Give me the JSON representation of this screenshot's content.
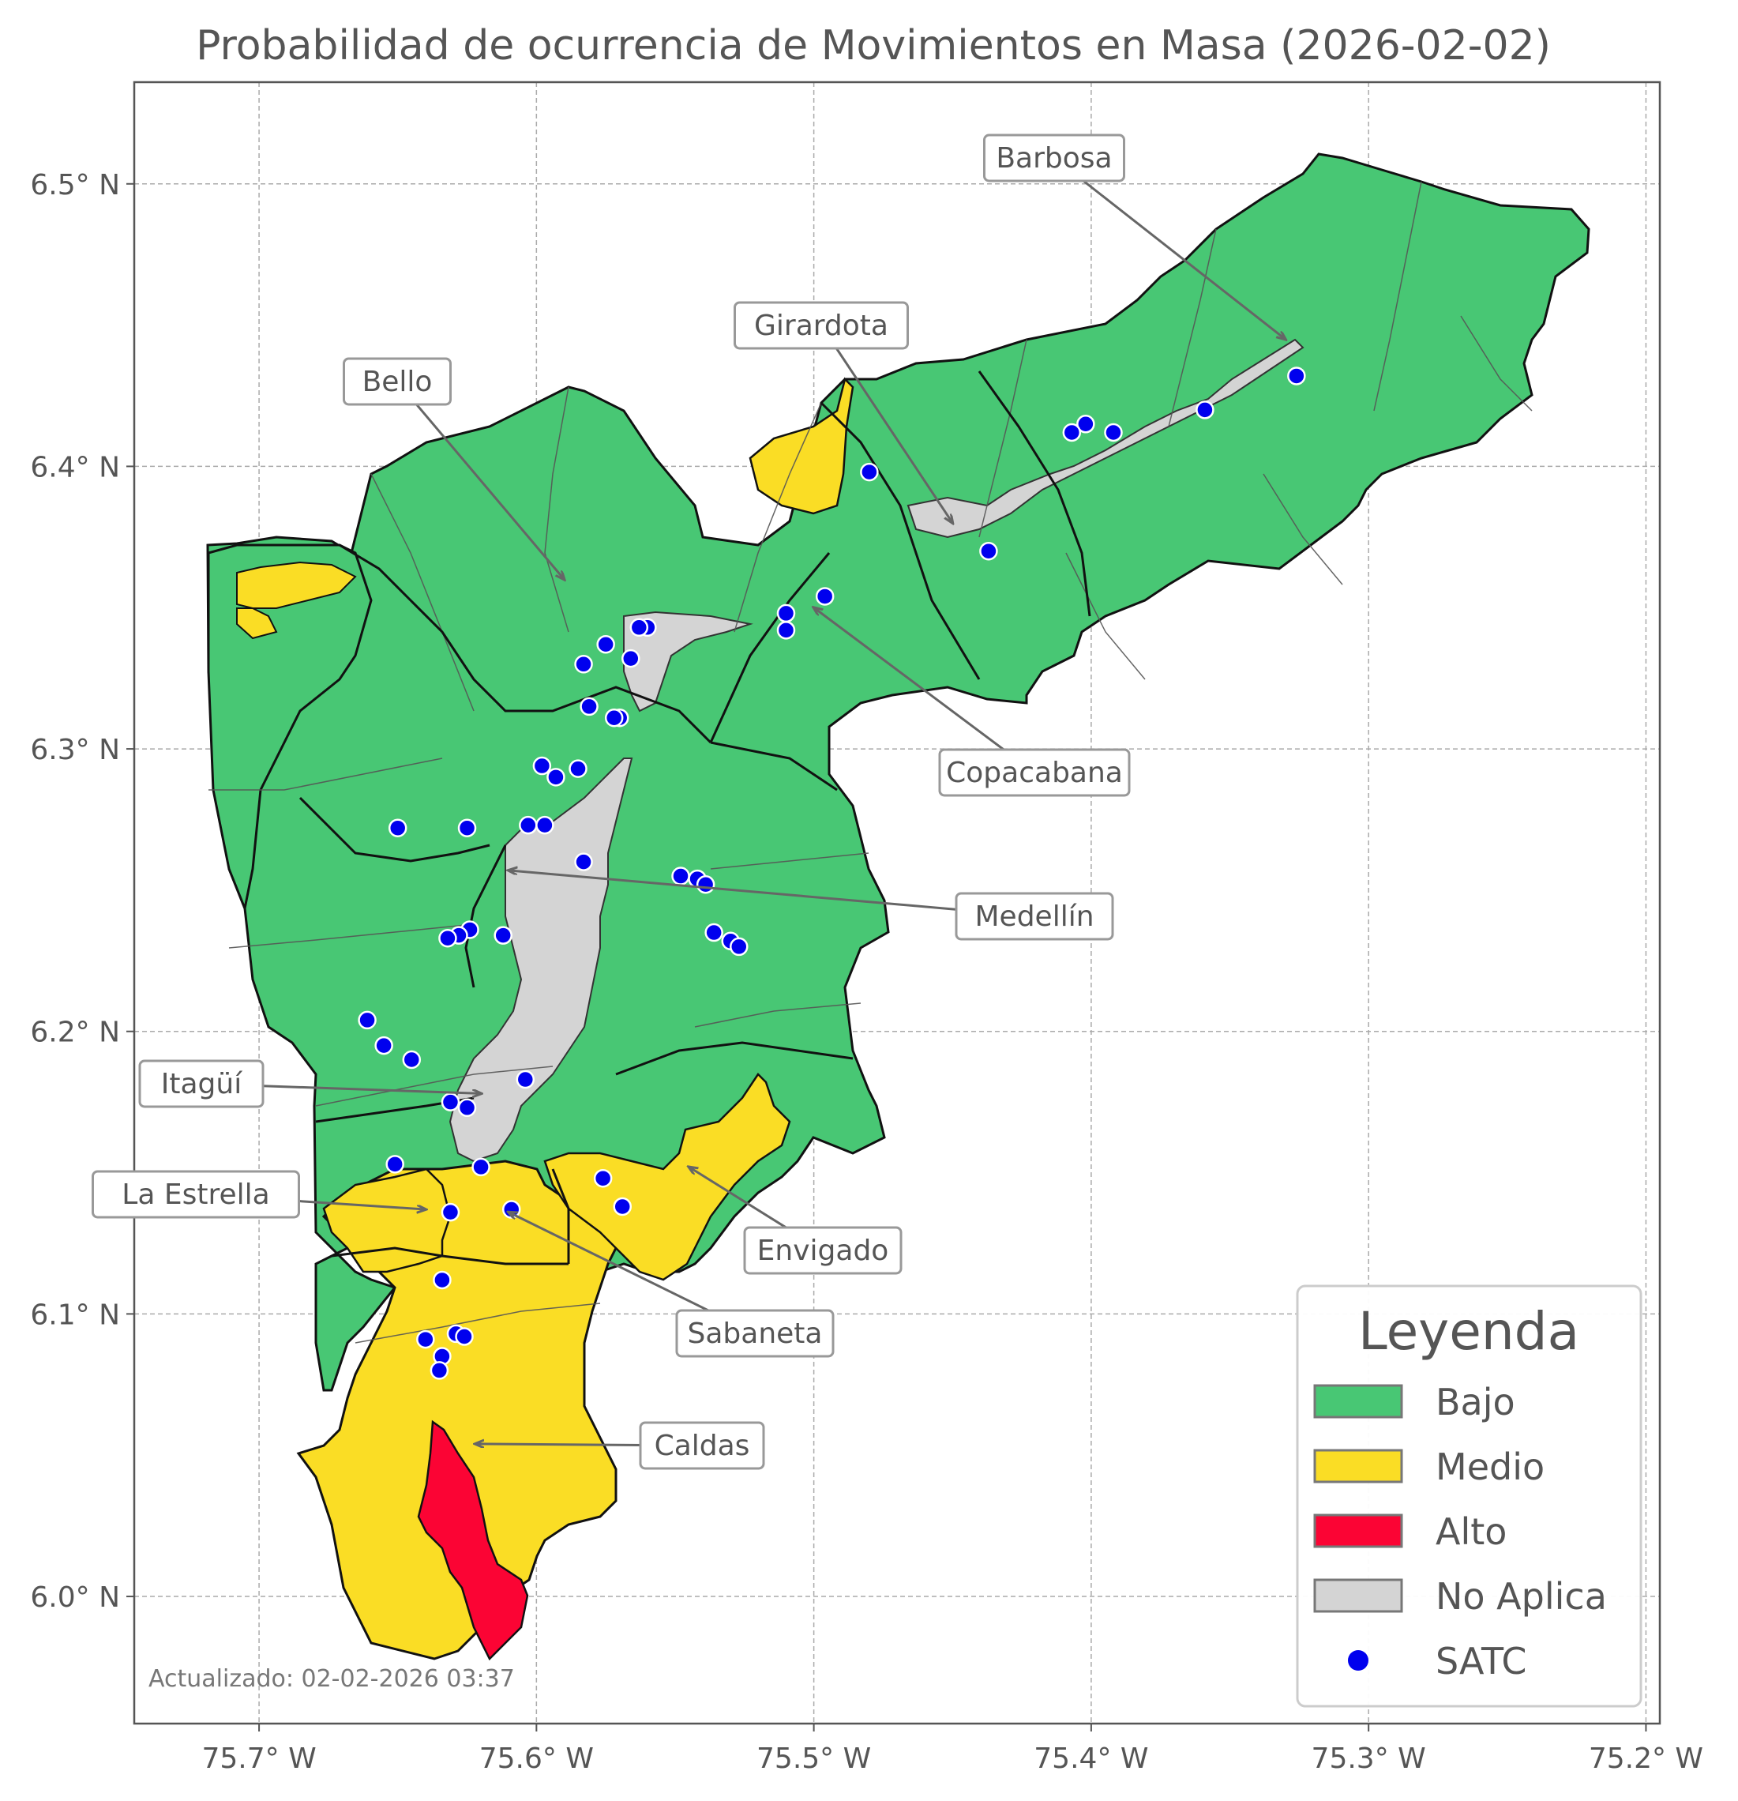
{
  "title": "Probabilidad de ocurrencia de Movimientos en Masa (2026-02-02)",
  "footer": "Actualizado: 02-02-2026 03:37",
  "axes": {
    "x_ticks": [
      {
        "value": -75.7,
        "label": "75.7° W"
      },
      {
        "value": -75.6,
        "label": "75.6° W"
      },
      {
        "value": -75.5,
        "label": "75.5° W"
      },
      {
        "value": -75.4,
        "label": "75.4° W"
      },
      {
        "value": -75.3,
        "label": "75.3° W"
      },
      {
        "value": -75.2,
        "label": "75.2° W"
      }
    ],
    "y_ticks": [
      {
        "value": 6.0,
        "label": "6.0° N"
      },
      {
        "value": 6.1,
        "label": "6.1° N"
      },
      {
        "value": 6.2,
        "label": "6.2° N"
      },
      {
        "value": 6.3,
        "label": "6.3° N"
      },
      {
        "value": 6.4,
        "label": "6.4° N"
      },
      {
        "value": 6.5,
        "label": "6.5° N"
      }
    ],
    "grid": true
  },
  "colors": {
    "bajo": "#48c774",
    "medio": "#fadd25",
    "alto": "#fb0434",
    "no_aplica": "#d4d4d4",
    "satc": "#0000ee",
    "border": "#111111",
    "inner": "#555555",
    "arrow": "#666666"
  },
  "legend": {
    "title": "Leyenda",
    "position": "bottom-right",
    "items": [
      {
        "label": "Bajo",
        "color": "#48c774",
        "kind": "patch"
      },
      {
        "label": "Medio",
        "color": "#fadd25",
        "kind": "patch"
      },
      {
        "label": "Alto",
        "color": "#fb0434",
        "kind": "patch"
      },
      {
        "label": "No Aplica",
        "color": "#d4d4d4",
        "kind": "patch"
      },
      {
        "label": "SATC",
        "color": "#0000ee",
        "kind": "dot"
      }
    ]
  },
  "municipalities": [
    {
      "name": "Barbosa",
      "lon": -75.33,
      "lat": 6.445
    },
    {
      "name": "Girardota",
      "lon": -75.45,
      "lat": 6.38
    },
    {
      "name": "Bello",
      "lon": -75.59,
      "lat": 6.36
    },
    {
      "name": "Copacabana",
      "lon": -75.5,
      "lat": 6.35
    },
    {
      "name": "Medellín",
      "lon": -75.61,
      "lat": 6.257
    },
    {
      "name": "Itagüí",
      "lon": -75.62,
      "lat": 6.178
    },
    {
      "name": "La Estrella",
      "lon": -75.64,
      "lat": 6.137
    },
    {
      "name": "Envigado",
      "lon": -75.545,
      "lat": 6.152
    },
    {
      "name": "Sabaneta",
      "lon": -75.61,
      "lat": 6.136
    },
    {
      "name": "Caldas",
      "lon": -75.622,
      "lat": 6.054
    }
  ],
  "satc_stations": [
    [
      -75.326,
      6.432
    ],
    [
      -75.359,
      6.42
    ],
    [
      -75.392,
      6.412
    ],
    [
      -75.402,
      6.415
    ],
    [
      -75.407,
      6.412
    ],
    [
      -75.48,
      6.398
    ],
    [
      -75.437,
      6.37
    ],
    [
      -75.496,
      6.354
    ],
    [
      -75.51,
      6.348
    ],
    [
      -75.51,
      6.342
    ],
    [
      -75.56,
      6.343
    ],
    [
      -75.563,
      6.343
    ],
    [
      -75.566,
      6.332
    ],
    [
      -75.575,
      6.337
    ],
    [
      -75.583,
      6.33
    ],
    [
      -75.581,
      6.315
    ],
    [
      -75.57,
      6.311
    ],
    [
      -75.572,
      6.311
    ],
    [
      -75.598,
      6.294
    ],
    [
      -75.585,
      6.293
    ],
    [
      -75.593,
      6.29
    ],
    [
      -75.65,
      6.272
    ],
    [
      -75.625,
      6.272
    ],
    [
      -75.603,
      6.273
    ],
    [
      -75.597,
      6.273
    ],
    [
      -75.583,
      6.26
    ],
    [
      -75.548,
      6.255
    ],
    [
      -75.542,
      6.254
    ],
    [
      -75.539,
      6.252
    ],
    [
      -75.536,
      6.235
    ],
    [
      -75.53,
      6.232
    ],
    [
      -75.527,
      6.23
    ],
    [
      -75.624,
      6.236
    ],
    [
      -75.628,
      6.234
    ],
    [
      -75.632,
      6.233
    ],
    [
      -75.612,
      6.234
    ],
    [
      -75.661,
      6.204
    ],
    [
      -75.655,
      6.195
    ],
    [
      -75.645,
      6.19
    ],
    [
      -75.604,
      6.183
    ],
    [
      -75.631,
      6.175
    ],
    [
      -75.625,
      6.173
    ],
    [
      -75.651,
      6.153
    ],
    [
      -75.62,
      6.152
    ],
    [
      -75.576,
      6.148
    ],
    [
      -75.569,
      6.138
    ],
    [
      -75.609,
      6.137
    ],
    [
      -75.631,
      6.136
    ],
    [
      -75.634,
      6.112
    ],
    [
      -75.64,
      6.091
    ],
    [
      -75.629,
      6.093
    ],
    [
      -75.626,
      6.092
    ],
    [
      -75.634,
      6.085
    ],
    [
      -75.635,
      6.08
    ]
  ]
}
